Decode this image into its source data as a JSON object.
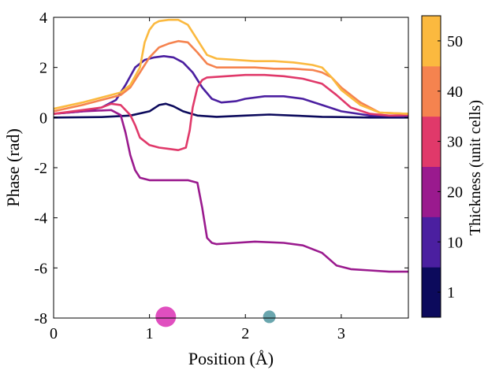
{
  "chart_data": {
    "type": "line",
    "xlabel": "Position (Å)",
    "ylabel": "Phase (rad)",
    "xlim": [
      0,
      3.7
    ],
    "ylim": [
      -8,
      4
    ],
    "x_ticks": [
      0,
      1,
      2,
      3
    ],
    "x_tick_labels": [
      "0",
      "1",
      "2",
      "3"
    ],
    "y_ticks": [
      4,
      2,
      0,
      -2,
      -4,
      -6,
      -8
    ],
    "y_tick_labels": [
      "4",
      "2",
      "0",
      "-2",
      "-4",
      "-6",
      "-8"
    ],
    "grid": false,
    "colorbar": {
      "label": "Thickness (unit cells)",
      "segments": [
        {
          "label": "1",
          "color": "#0c0a5c"
        },
        {
          "label": "10",
          "color": "#4b1fa0"
        },
        {
          "label": "20",
          "color": "#9a1a8e"
        },
        {
          "label": "30",
          "color": "#e0396a"
        },
        {
          "label": "40",
          "color": "#f5834f"
        },
        {
          "label": "50",
          "color": "#fbb93f"
        }
      ]
    },
    "markers": [
      {
        "x": 1.17,
        "y": -7.95,
        "color": "#e04fbf",
        "size": "large"
      },
      {
        "x": 2.25,
        "y": -7.95,
        "color": "#6aa6ae",
        "size": "small"
      }
    ],
    "series": [
      {
        "color": "#0c0a5c",
        "x": [
          0,
          0.5,
          0.8,
          1.0,
          1.1,
          1.17,
          1.25,
          1.35,
          1.5,
          1.7,
          2.0,
          2.25,
          2.5,
          2.8,
          3.0,
          3.3,
          3.7
        ],
        "y": [
          0,
          0.02,
          0.08,
          0.25,
          0.5,
          0.55,
          0.45,
          0.25,
          0.08,
          0.03,
          0.08,
          0.12,
          0.08,
          0.03,
          0.02,
          0.0,
          0.0
        ]
      },
      {
        "color": "#4b1fa0",
        "x": [
          0,
          0.3,
          0.5,
          0.65,
          0.75,
          0.85,
          0.95,
          1.05,
          1.15,
          1.25,
          1.35,
          1.45,
          1.55,
          1.65,
          1.75,
          1.9,
          2.0,
          2.2,
          2.4,
          2.6,
          2.8,
          3.0,
          3.3,
          3.7
        ],
        "y": [
          0.15,
          0.25,
          0.4,
          0.7,
          1.3,
          2.0,
          2.3,
          2.4,
          2.45,
          2.4,
          2.2,
          1.8,
          1.2,
          0.75,
          0.6,
          0.65,
          0.75,
          0.85,
          0.85,
          0.75,
          0.5,
          0.25,
          0.08,
          0.05
        ]
      },
      {
        "color": "#9a1a8e",
        "x": [
          0,
          0.3,
          0.6,
          0.7,
          0.75,
          0.8,
          0.85,
          0.9,
          1.0,
          1.2,
          1.3,
          1.4,
          1.5,
          1.55,
          1.6,
          1.65,
          1.7,
          1.9,
          2.1,
          2.4,
          2.6,
          2.8,
          2.95,
          3.1,
          3.3,
          3.5,
          3.7
        ],
        "y": [
          0.15,
          0.25,
          0.3,
          0.1,
          -0.6,
          -1.5,
          -2.1,
          -2.4,
          -2.5,
          -2.5,
          -2.5,
          -2.5,
          -2.6,
          -3.6,
          -4.8,
          -5.0,
          -5.05,
          -5.0,
          -4.95,
          -5.0,
          -5.1,
          -5.4,
          -5.9,
          -6.05,
          -6.1,
          -6.15,
          -6.15
        ]
      },
      {
        "color": "#e0396a",
        "x": [
          0,
          0.3,
          0.5,
          0.6,
          0.7,
          0.8,
          0.85,
          0.9,
          1.0,
          1.1,
          1.2,
          1.3,
          1.38,
          1.42,
          1.45,
          1.5,
          1.55,
          1.6,
          1.8,
          2.0,
          2.2,
          2.4,
          2.6,
          2.8,
          2.95,
          3.1,
          3.3,
          3.5,
          3.7
        ],
        "y": [
          0.15,
          0.3,
          0.4,
          0.55,
          0.5,
          0.1,
          -0.3,
          -0.8,
          -1.1,
          -1.2,
          -1.25,
          -1.3,
          -1.2,
          -0.5,
          0.4,
          1.2,
          1.5,
          1.6,
          1.65,
          1.7,
          1.7,
          1.65,
          1.55,
          1.35,
          0.9,
          0.4,
          0.15,
          0.08,
          0.1
        ]
      },
      {
        "color": "#f5834f",
        "x": [
          0,
          0.3,
          0.5,
          0.7,
          0.8,
          0.9,
          1.0,
          1.1,
          1.2,
          1.3,
          1.4,
          1.5,
          1.6,
          1.7,
          1.9,
          2.1,
          2.3,
          2.5,
          2.7,
          2.8,
          2.9,
          3.0,
          3.2,
          3.4,
          3.7
        ],
        "y": [
          0.25,
          0.5,
          0.7,
          0.9,
          1.2,
          1.8,
          2.4,
          2.8,
          2.95,
          3.05,
          3.0,
          2.6,
          2.15,
          2.0,
          2.0,
          2.0,
          1.95,
          1.95,
          1.9,
          1.8,
          1.6,
          1.2,
          0.6,
          0.2,
          0.15
        ]
      },
      {
        "color": "#fbb93f",
        "x": [
          0,
          0.3,
          0.5,
          0.7,
          0.8,
          0.9,
          0.95,
          1.0,
          1.05,
          1.1,
          1.2,
          1.3,
          1.4,
          1.5,
          1.6,
          1.7,
          1.9,
          2.1,
          2.3,
          2.5,
          2.7,
          2.8,
          2.9,
          3.0,
          3.2,
          3.4,
          3.7
        ],
        "y": [
          0.35,
          0.6,
          0.8,
          1.0,
          1.3,
          2.0,
          3.0,
          3.5,
          3.75,
          3.85,
          3.9,
          3.9,
          3.7,
          3.1,
          2.5,
          2.35,
          2.3,
          2.25,
          2.25,
          2.2,
          2.1,
          2.0,
          1.6,
          1.1,
          0.5,
          0.2,
          0.15
        ]
      }
    ]
  }
}
